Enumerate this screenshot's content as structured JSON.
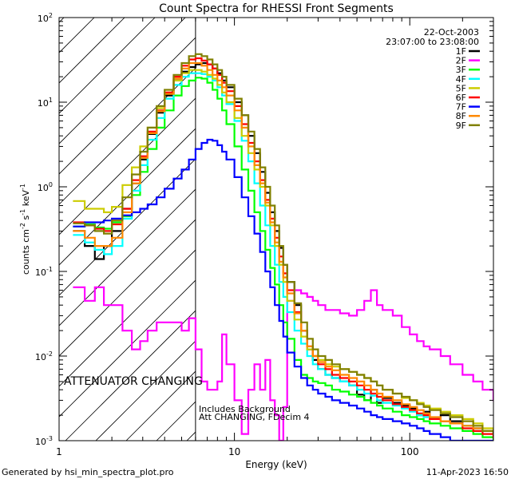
{
  "chart_data": {
    "type": "line",
    "title": "Count Spectra for RHESSI Front Segments",
    "xlabel": "Energy (keV)",
    "ylabel": {
      "base": "counts cm",
      "e1": "-2",
      "mid1": " s",
      "e2": "-1",
      "mid2": " keV",
      "e3": "-1"
    },
    "xscale": "log",
    "yscale": "log",
    "xlim": [
      1,
      300
    ],
    "ylim": [
      0.001,
      100
    ],
    "x_ticks": [
      {
        "value": 1,
        "label": "1"
      },
      {
        "value": 10,
        "label": "10"
      },
      {
        "value": 100,
        "label": "100"
      }
    ],
    "y_ticks": [
      {
        "value": 0.001,
        "base": "10",
        "exp": "-3"
      },
      {
        "value": 0.01,
        "base": "10",
        "exp": "-2"
      },
      {
        "value": 0.1,
        "base": "10",
        "exp": "-1"
      },
      {
        "value": 1,
        "base": "10",
        "exp": "0"
      },
      {
        "value": 10,
        "base": "10",
        "exp": "1"
      },
      {
        "value": 100,
        "base": "10",
        "exp": "2"
      }
    ],
    "legend_header": [
      "22-Oct-2003",
      "23:07:00 to 23:08:00"
    ],
    "legend_position": "top-right",
    "annotations": {
      "attenuator": "ATTENUATOR CHANGING",
      "background": "Includes Background",
      "att_status": "Att CHANGING, FDecim 4",
      "footer_left": "Generated by hsi_min_spectra_plot.pro",
      "footer_right": "11-Apr-2023 16:50",
      "attenuator_color": "#dd0000"
    },
    "hatched_region": {
      "x_from": 1,
      "x_to": 6
    },
    "vertical_line_x": 6,
    "series": [
      {
        "name": "1F",
        "color": "#000000",
        "x": [
          1.2,
          1.4,
          1.6,
          1.8,
          2.0,
          2.3,
          2.6,
          2.9,
          3.2,
          3.6,
          4.0,
          4.5,
          5.0,
          5.5,
          6.0,
          6.5,
          7.0,
          7.5,
          8.0,
          8.5,
          9,
          10,
          11,
          12,
          13,
          14,
          15,
          16,
          17,
          18,
          19,
          20,
          22,
          24,
          26,
          28,
          30,
          33,
          36,
          40,
          45,
          50,
          55,
          60,
          65,
          70,
          80,
          90,
          100,
          110,
          120,
          130,
          150,
          170,
          200,
          230,
          260,
          300
        ],
        "y": [
          0.3,
          0.2,
          0.14,
          0.2,
          0.3,
          0.55,
          1.1,
          2.1,
          4.2,
          7.5,
          12,
          18,
          23,
          26,
          28,
          29,
          28,
          25,
          22,
          18,
          15,
          10,
          7,
          4,
          2.5,
          1.5,
          0.85,
          0.5,
          0.3,
          0.19,
          0.12,
          0.075,
          0.04,
          0.02,
          0.012,
          0.009,
          0.007,
          0.006,
          0.0055,
          0.005,
          0.0045,
          0.0035,
          0.003,
          0.004,
          0.0028,
          0.0032,
          0.0028,
          0.0026,
          0.0024,
          0.002,
          0.0022,
          0.0018,
          0.002,
          0.0017,
          0.0015,
          0.0014,
          0.0013,
          0.0012
        ]
      },
      {
        "name": "2F",
        "color": "#ff00ff",
        "x": [
          1.2,
          1.4,
          1.6,
          1.8,
          2.0,
          2.3,
          2.6,
          2.9,
          3.2,
          3.6,
          4.0,
          4.5,
          5.0,
          5.5,
          6.0,
          6.5,
          7.0,
          7.5,
          8.0,
          8.5,
          9,
          10,
          11,
          12,
          13,
          14,
          15,
          16,
          17,
          18,
          19,
          20,
          22,
          24,
          26,
          28,
          30,
          33,
          36,
          40,
          45,
          50,
          55,
          60,
          65,
          70,
          80,
          90,
          100,
          110,
          120,
          130,
          150,
          170,
          200,
          230,
          260,
          300
        ],
        "y": [
          0.065,
          0.045,
          0.065,
          0.04,
          0.04,
          0.02,
          0.012,
          0.015,
          0.02,
          0.025,
          0.025,
          0.025,
          0.02,
          0.028,
          0.012,
          0.005,
          0.004,
          0.004,
          0.005,
          0.018,
          0.008,
          0.003,
          0.0012,
          0.004,
          0.008,
          0.004,
          0.009,
          0.003,
          0.002,
          0.001,
          0.0025,
          0.045,
          0.06,
          0.055,
          0.05,
          0.045,
          0.04,
          0.035,
          0.035,
          0.032,
          0.03,
          0.035,
          0.045,
          0.06,
          0.04,
          0.035,
          0.03,
          0.022,
          0.018,
          0.015,
          0.013,
          0.012,
          0.01,
          0.008,
          0.006,
          0.005,
          0.004,
          0.003
        ]
      },
      {
        "name": "3F",
        "color": "#00ff00",
        "x": [
          1.2,
          1.4,
          1.6,
          1.8,
          2.0,
          2.3,
          2.6,
          2.9,
          3.2,
          3.6,
          4.0,
          4.5,
          5.0,
          5.5,
          6.0,
          6.5,
          7.0,
          7.5,
          8.0,
          8.5,
          9,
          10,
          11,
          12,
          13,
          14,
          15,
          16,
          17,
          18,
          19,
          20,
          22,
          24,
          26,
          28,
          30,
          33,
          36,
          40,
          45,
          50,
          55,
          60,
          65,
          70,
          80,
          90,
          100,
          110,
          120,
          130,
          150,
          170,
          200,
          230,
          260,
          300
        ],
        "y": [
          0.34,
          0.36,
          0.33,
          0.32,
          0.38,
          0.45,
          0.8,
          1.5,
          2.8,
          5,
          8,
          12,
          15.5,
          18,
          19.5,
          19,
          17,
          14,
          11,
          8,
          5.5,
          3,
          1.6,
          0.9,
          0.5,
          0.3,
          0.18,
          0.11,
          0.07,
          0.04,
          0.025,
          0.016,
          0.009,
          0.006,
          0.0055,
          0.005,
          0.0048,
          0.0045,
          0.004,
          0.0038,
          0.0035,
          0.0033,
          0.003,
          0.0028,
          0.0026,
          0.0024,
          0.0022,
          0.002,
          0.0019,
          0.0018,
          0.0017,
          0.0016,
          0.0015,
          0.0014,
          0.0013,
          0.0012,
          0.0011,
          0.001
        ]
      },
      {
        "name": "4F",
        "color": "#00ffff",
        "x": [
          1.2,
          1.4,
          1.6,
          1.8,
          2.0,
          2.3,
          2.6,
          2.9,
          3.2,
          3.6,
          4.0,
          4.5,
          5.0,
          5.5,
          6.0,
          6.5,
          7.0,
          7.5,
          8.0,
          8.5,
          9,
          10,
          11,
          12,
          13,
          14,
          15,
          16,
          17,
          18,
          19,
          20,
          22,
          24,
          26,
          28,
          30,
          33,
          36,
          40,
          45,
          50,
          55,
          60,
          65,
          70,
          80,
          90,
          100,
          110,
          120,
          130,
          150,
          170,
          200,
          230,
          260,
          300
        ],
        "y": [
          0.27,
          0.22,
          0.18,
          0.16,
          0.2,
          0.42,
          0.9,
          1.8,
          3.6,
          6.5,
          11,
          16,
          20,
          22,
          22,
          21.5,
          20,
          18,
          15,
          12,
          9.5,
          6,
          3.5,
          2,
          1.1,
          0.6,
          0.35,
          0.2,
          0.12,
          0.075,
          0.05,
          0.033,
          0.02,
          0.014,
          0.01,
          0.008,
          0.007,
          0.006,
          0.0055,
          0.005,
          0.0045,
          0.004,
          0.0036,
          0.0034,
          0.003,
          0.0028,
          0.0026,
          0.0024,
          0.0022,
          0.002,
          0.0019,
          0.0018,
          0.0017,
          0.0016,
          0.0015,
          0.0014,
          0.0013,
          0.0012
        ]
      },
      {
        "name": "5F",
        "color": "#cccc00",
        "x": [
          1.2,
          1.4,
          1.6,
          1.8,
          2.0,
          2.3,
          2.6,
          2.9,
          3.2,
          3.6,
          4.0,
          4.5,
          5.0,
          5.5,
          6.0,
          6.5,
          7.0,
          7.5,
          8.0,
          8.5,
          9,
          10,
          11,
          12,
          13,
          14,
          15,
          16,
          17,
          18,
          19,
          20,
          22,
          24,
          26,
          28,
          30,
          33,
          36,
          40,
          45,
          50,
          55,
          60,
          65,
          70,
          80,
          90,
          100,
          110,
          120,
          130,
          150,
          170,
          200,
          230,
          260,
          300
        ],
        "y": [
          0.68,
          0.55,
          0.55,
          0.5,
          0.58,
          1.05,
          1.7,
          3,
          5,
          8.5,
          13,
          18,
          22,
          24,
          24,
          23,
          21,
          19,
          16,
          13,
          10,
          6.5,
          4,
          2.5,
          1.6,
          1,
          0.6,
          0.35,
          0.2,
          0.12,
          0.075,
          0.045,
          0.027,
          0.017,
          0.012,
          0.01,
          0.009,
          0.008,
          0.0075,
          0.007,
          0.0065,
          0.006,
          0.0055,
          0.005,
          0.0045,
          0.004,
          0.0036,
          0.0032,
          0.003,
          0.0028,
          0.0026,
          0.0024,
          0.0022,
          0.002,
          0.0018,
          0.0016,
          0.0014,
          0.0012
        ]
      },
      {
        "name": "6F",
        "color": "#ff0000",
        "x": [
          1.2,
          1.4,
          1.6,
          1.8,
          2.0,
          2.3,
          2.6,
          2.9,
          3.2,
          3.6,
          4.0,
          4.5,
          5.0,
          5.5,
          6.0,
          6.5,
          7.0,
          7.5,
          8.0,
          8.5,
          9,
          10,
          11,
          12,
          13,
          14,
          15,
          16,
          17,
          18,
          19,
          20,
          22,
          24,
          26,
          28,
          30,
          33,
          36,
          40,
          45,
          50,
          55,
          60,
          65,
          70,
          80,
          90,
          100,
          110,
          120,
          130,
          150,
          170,
          200,
          230,
          260,
          300
        ],
        "y": [
          0.38,
          0.35,
          0.32,
          0.3,
          0.36,
          0.55,
          1.2,
          2.3,
          4.5,
          8,
          13,
          20,
          27,
          32,
          33,
          31,
          28,
          25,
          21,
          17,
          13.5,
          9,
          5.5,
          3.3,
          2,
          1.2,
          0.7,
          0.42,
          0.25,
          0.15,
          0.095,
          0.06,
          0.033,
          0.02,
          0.013,
          0.01,
          0.008,
          0.007,
          0.006,
          0.0055,
          0.005,
          0.0045,
          0.004,
          0.0036,
          0.0033,
          0.003,
          0.0027,
          0.0025,
          0.0023,
          0.0021,
          0.002,
          0.0018,
          0.0017,
          0.0016,
          0.0014,
          0.0013,
          0.0012,
          0.0011
        ]
      },
      {
        "name": "7F",
        "color": "#0000ff",
        "x": [
          1.2,
          1.4,
          1.6,
          1.8,
          2.0,
          2.3,
          2.6,
          2.9,
          3.2,
          3.6,
          4.0,
          4.5,
          5.0,
          5.5,
          6.0,
          6.5,
          7.0,
          7.5,
          8.0,
          8.5,
          9,
          10,
          11,
          12,
          13,
          14,
          15,
          16,
          17,
          18,
          19,
          20,
          22,
          24,
          26,
          28,
          30,
          33,
          36,
          40,
          45,
          50,
          55,
          60,
          65,
          70,
          80,
          90,
          100,
          110,
          120,
          130,
          150,
          170,
          200,
          230,
          260,
          300
        ],
        "y": [
          0.34,
          0.38,
          0.38,
          0.4,
          0.42,
          0.46,
          0.5,
          0.55,
          0.62,
          0.75,
          0.95,
          1.25,
          1.6,
          2.1,
          2.8,
          3.3,
          3.6,
          3.5,
          3.1,
          2.6,
          2.1,
          1.3,
          0.75,
          0.45,
          0.28,
          0.17,
          0.1,
          0.065,
          0.04,
          0.026,
          0.017,
          0.011,
          0.0075,
          0.0055,
          0.0045,
          0.004,
          0.0036,
          0.0033,
          0.003,
          0.0028,
          0.0026,
          0.0024,
          0.0022,
          0.002,
          0.0019,
          0.0018,
          0.0017,
          0.0016,
          0.0015,
          0.0014,
          0.0013,
          0.0012,
          0.0011,
          0.001,
          0.001,
          0.001,
          0.001,
          0.001
        ]
      },
      {
        "name": "8F",
        "color": "#ff8800",
        "x": [
          1.2,
          1.4,
          1.6,
          1.8,
          2.0,
          2.3,
          2.6,
          2.9,
          3.2,
          3.6,
          4.0,
          4.5,
          5.0,
          5.5,
          6.0,
          6.5,
          7.0,
          7.5,
          8.0,
          8.5,
          9,
          10,
          11,
          12,
          13,
          14,
          15,
          16,
          17,
          18,
          19,
          20,
          22,
          24,
          26,
          28,
          30,
          33,
          36,
          40,
          45,
          50,
          55,
          60,
          65,
          70,
          80,
          90,
          100,
          110,
          120,
          130,
          150,
          170,
          200,
          230,
          260,
          300
        ],
        "y": [
          0.3,
          0.25,
          0.2,
          0.2,
          0.25,
          0.5,
          1.1,
          2.2,
          4.3,
          7.8,
          12.5,
          19,
          25,
          29,
          29,
          27,
          24,
          21,
          18,
          15,
          12,
          8,
          5,
          3,
          1.8,
          1.1,
          0.65,
          0.38,
          0.22,
          0.13,
          0.085,
          0.055,
          0.032,
          0.02,
          0.013,
          0.01,
          0.0085,
          0.0075,
          0.0068,
          0.006,
          0.0055,
          0.005,
          0.0045,
          0.004,
          0.0036,
          0.0033,
          0.003,
          0.0027,
          0.0025,
          0.0023,
          0.0021,
          0.0019,
          0.0017,
          0.0016,
          0.0015,
          0.0014,
          0.0013,
          0.0012
        ]
      },
      {
        "name": "9F",
        "color": "#808000",
        "x": [
          1.2,
          1.4,
          1.6,
          1.8,
          2.0,
          2.3,
          2.6,
          2.9,
          3.2,
          3.6,
          4.0,
          4.5,
          5.0,
          5.5,
          6.0,
          6.5,
          7.0,
          7.5,
          8.0,
          8.5,
          9,
          10,
          11,
          12,
          13,
          14,
          15,
          16,
          17,
          18,
          19,
          20,
          22,
          24,
          26,
          28,
          30,
          33,
          36,
          40,
          45,
          50,
          55,
          60,
          65,
          70,
          80,
          90,
          100,
          110,
          120,
          130,
          150,
          170,
          200,
          230,
          260,
          300
        ],
        "y": [
          0.37,
          0.35,
          0.3,
          0.28,
          0.4,
          0.75,
          1.4,
          2.6,
          5,
          9,
          14,
          21,
          29,
          35,
          37,
          35,
          32,
          28,
          24,
          20,
          16,
          11,
          7,
          4.5,
          2.8,
          1.7,
          1,
          0.6,
          0.35,
          0.2,
          0.12,
          0.075,
          0.042,
          0.025,
          0.016,
          0.012,
          0.01,
          0.009,
          0.008,
          0.007,
          0.0065,
          0.006,
          0.0055,
          0.005,
          0.0045,
          0.004,
          0.0036,
          0.0033,
          0.003,
          0.0027,
          0.0025,
          0.0023,
          0.0021,
          0.0019,
          0.0017,
          0.0015,
          0.0013,
          0.0012
        ]
      }
    ]
  }
}
